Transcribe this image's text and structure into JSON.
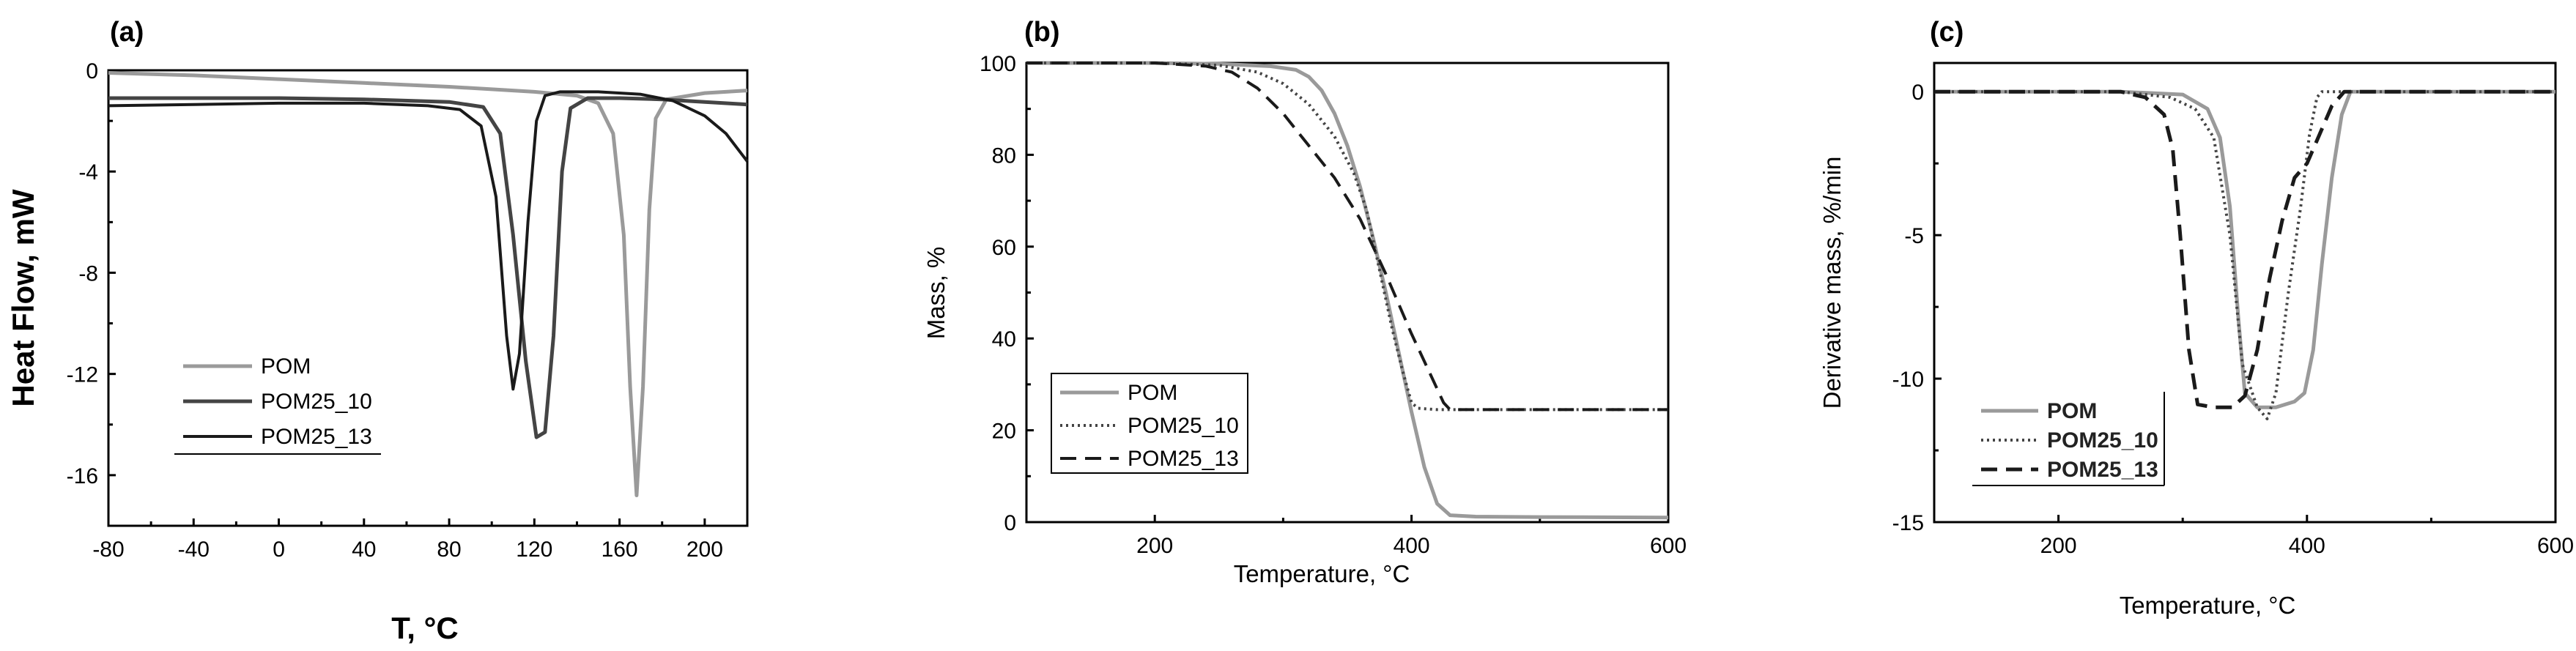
{
  "colors": {
    "POM": "#9a9a9a",
    "POM25_10": "#444444",
    "POM25_13": "#1a1a1a",
    "axis": "#000000"
  },
  "chart_data": [
    {
      "id": "a",
      "type": "line",
      "panel_label": "(a)",
      "title": "",
      "xlabel": "T, °C",
      "ylabel": "Heat Flow, mW",
      "xlim": [
        -80,
        220
      ],
      "ylim": [
        -18,
        0
      ],
      "xticks": [
        -80,
        -40,
        0,
        40,
        80,
        120,
        160,
        200
      ],
      "yticks": [
        0,
        -4,
        -8,
        -12,
        -16
      ],
      "legend_position": "lower-left",
      "series": [
        {
          "name": "POM",
          "style": "solid",
          "color": "#9a9a9a",
          "width": 5,
          "points": [
            [
              -80,
              -0.1
            ],
            [
              -40,
              -0.2
            ],
            [
              0,
              -0.35
            ],
            [
              40,
              -0.5
            ],
            [
              80,
              -0.65
            ],
            [
              100,
              -0.75
            ],
            [
              120,
              -0.85
            ],
            [
              140,
              -1.0
            ],
            [
              150,
              -1.3
            ],
            [
              157,
              -2.5
            ],
            [
              162,
              -6.5
            ],
            [
              165,
              -12.5
            ],
            [
              168,
              -16.8
            ],
            [
              171,
              -12.5
            ],
            [
              174,
              -5.5
            ],
            [
              177,
              -1.9
            ],
            [
              182,
              -1.15
            ],
            [
              200,
              -0.9
            ],
            [
              220,
              -0.8
            ]
          ]
        },
        {
          "name": "POM25_10",
          "style": "solid",
          "color": "#444444",
          "width": 5,
          "points": [
            [
              -80,
              -1.1
            ],
            [
              -40,
              -1.1
            ],
            [
              0,
              -1.1
            ],
            [
              40,
              -1.15
            ],
            [
              80,
              -1.25
            ],
            [
              96,
              -1.45
            ],
            [
              104,
              -2.5
            ],
            [
              110,
              -6.5
            ],
            [
              116,
              -11.5
            ],
            [
              121,
              -14.5
            ],
            [
              125,
              -14.3
            ],
            [
              129,
              -10.5
            ],
            [
              133,
              -4.0
            ],
            [
              137,
              -1.5
            ],
            [
              145,
              -1.1
            ],
            [
              160,
              -1.1
            ],
            [
              180,
              -1.15
            ],
            [
              200,
              -1.25
            ],
            [
              220,
              -1.35
            ]
          ]
        },
        {
          "name": "POM25_13",
          "style": "solid",
          "color": "#1a1a1a",
          "width": 4,
          "points": [
            [
              -80,
              -1.4
            ],
            [
              -40,
              -1.35
            ],
            [
              0,
              -1.3
            ],
            [
              40,
              -1.3
            ],
            [
              70,
              -1.4
            ],
            [
              85,
              -1.55
            ],
            [
              95,
              -2.2
            ],
            [
              102,
              -5.0
            ],
            [
              107,
              -10.5
            ],
            [
              110,
              -12.6
            ],
            [
              113,
              -11.2
            ],
            [
              117,
              -6.0
            ],
            [
              121,
              -2.0
            ],
            [
              125,
              -1.0
            ],
            [
              132,
              -0.85
            ],
            [
              150,
              -0.85
            ],
            [
              170,
              -0.95
            ],
            [
              185,
              -1.2
            ],
            [
              200,
              -1.8
            ],
            [
              210,
              -2.5
            ],
            [
              220,
              -3.6
            ]
          ]
        }
      ]
    },
    {
      "id": "b",
      "type": "line",
      "panel_label": "(b)",
      "title": "",
      "xlabel": "Temperature, °C",
      "ylabel": "Mass, %",
      "xlim": [
        100,
        600
      ],
      "ylim": [
        0,
        100
      ],
      "xticks": [
        200,
        400,
        600
      ],
      "yticks": [
        0,
        20,
        40,
        60,
        80,
        100
      ],
      "legend_position": "lower-left",
      "series": [
        {
          "name": "POM",
          "style": "solid",
          "color": "#9a9a9a",
          "width": 5,
          "points": [
            [
              100,
              100
            ],
            [
              200,
              100
            ],
            [
              250,
              99.8
            ],
            [
              290,
              99.3
            ],
            [
              310,
              98.5
            ],
            [
              320,
              97
            ],
            [
              330,
              94
            ],
            [
              340,
              89
            ],
            [
              350,
              82
            ],
            [
              360,
              73
            ],
            [
              370,
              62
            ],
            [
              380,
              50
            ],
            [
              390,
              37
            ],
            [
              400,
              24
            ],
            [
              410,
              12
            ],
            [
              420,
              4
            ],
            [
              430,
              1.5
            ],
            [
              450,
              1.2
            ],
            [
              500,
              1.1
            ],
            [
              600,
              1.0
            ]
          ]
        },
        {
          "name": "POM25_10",
          "style": "dotted",
          "color": "#444444",
          "width": 4,
          "points": [
            [
              100,
              100
            ],
            [
              200,
              100
            ],
            [
              250,
              99.5
            ],
            [
              280,
              98
            ],
            [
              300,
              95.5
            ],
            [
              320,
              91
            ],
            [
              340,
              84
            ],
            [
              355,
              76
            ],
            [
              365,
              68
            ],
            [
              375,
              55
            ],
            [
              385,
              42
            ],
            [
              393,
              33
            ],
            [
              400,
              26
            ],
            [
              405,
              24.8
            ],
            [
              420,
              24.5
            ],
            [
              500,
              24.5
            ],
            [
              600,
              24.5
            ]
          ]
        },
        {
          "name": "POM25_13",
          "style": "dashed",
          "color": "#1a1a1a",
          "width": 4,
          "points": [
            [
              100,
              100
            ],
            [
              200,
              100
            ],
            [
              240,
              99.3
            ],
            [
              260,
              98
            ],
            [
              280,
              94.5
            ],
            [
              300,
              89
            ],
            [
              320,
              82
            ],
            [
              340,
              75
            ],
            [
              360,
              66
            ],
            [
              380,
              54
            ],
            [
              400,
              41
            ],
            [
              415,
              32
            ],
            [
              425,
              26
            ],
            [
              430,
              24.5
            ],
            [
              440,
              24.5
            ],
            [
              500,
              24.5
            ],
            [
              600,
              24.5
            ]
          ]
        }
      ]
    },
    {
      "id": "c",
      "type": "line",
      "panel_label": "(c)",
      "title": "",
      "xlabel": "Temperature, °C",
      "ylabel": "Derivative mass, %/min",
      "xlim": [
        100,
        600
      ],
      "ylim": [
        -15,
        1
      ],
      "xticks": [
        200,
        400,
        600
      ],
      "yticks": [
        0,
        -5,
        -10,
        -15
      ],
      "legend_position": "lower-left",
      "series": [
        {
          "name": "POM",
          "style": "solid",
          "color": "#9a9a9a",
          "width": 5,
          "points": [
            [
              100,
              0
            ],
            [
              250,
              0
            ],
            [
              300,
              -0.1
            ],
            [
              320,
              -0.6
            ],
            [
              330,
              -1.6
            ],
            [
              338,
              -4
            ],
            [
              345,
              -8
            ],
            [
              350,
              -10.5
            ],
            [
              360,
              -11.0
            ],
            [
              375,
              -11.0
            ],
            [
              390,
              -10.8
            ],
            [
              398,
              -10.5
            ],
            [
              405,
              -9
            ],
            [
              412,
              -6
            ],
            [
              420,
              -3
            ],
            [
              428,
              -0.8
            ],
            [
              435,
              0
            ],
            [
              600,
              0
            ]
          ]
        },
        {
          "name": "POM25_10",
          "style": "dotted",
          "color": "#444444",
          "width": 4,
          "points": [
            [
              100,
              0
            ],
            [
              250,
              0
            ],
            [
              290,
              -0.2
            ],
            [
              310,
              -0.6
            ],
            [
              325,
              -1.6
            ],
            [
              338,
              -5
            ],
            [
              348,
              -9.5
            ],
            [
              360,
              -11
            ],
            [
              368,
              -11.4
            ],
            [
              375,
              -10.5
            ],
            [
              385,
              -7
            ],
            [
              395,
              -4
            ],
            [
              402,
              -1.5
            ],
            [
              408,
              -0.2
            ],
            [
              412,
              0
            ],
            [
              600,
              0
            ]
          ]
        },
        {
          "name": "POM25_13",
          "style": "dashed",
          "color": "#1a1a1a",
          "width": 5,
          "points": [
            [
              100,
              0
            ],
            [
              250,
              0
            ],
            [
              270,
              -0.2
            ],
            [
              285,
              -0.8
            ],
            [
              292,
              -2
            ],
            [
              298,
              -5
            ],
            [
              305,
              -9
            ],
            [
              312,
              -10.9
            ],
            [
              325,
              -11.0
            ],
            [
              340,
              -11.0
            ],
            [
              350,
              -10.6
            ],
            [
              360,
              -9
            ],
            [
              370,
              -6.5
            ],
            [
              380,
              -4.5
            ],
            [
              390,
              -3
            ],
            [
              400,
              -2.5
            ],
            [
              410,
              -1.5
            ],
            [
              420,
              -0.5
            ],
            [
              430,
              0
            ],
            [
              600,
              0
            ]
          ]
        }
      ]
    }
  ]
}
